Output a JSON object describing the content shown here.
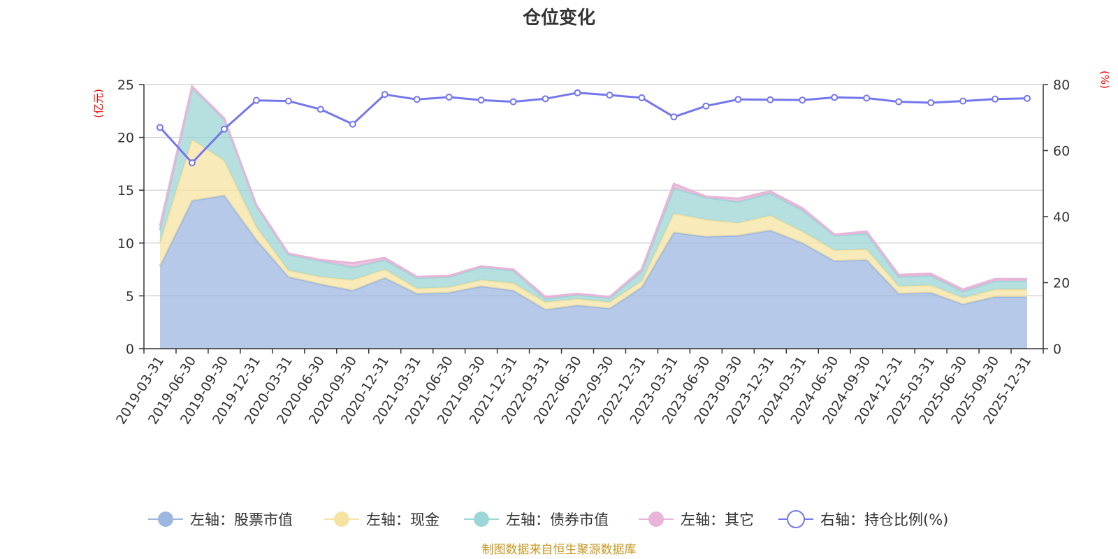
{
  "chart_data": {
    "type": "area",
    "title": "仓位变化",
    "left_unit": "(亿元)",
    "right_unit": "(%)",
    "source": "制图数据来自恒生聚源数据库",
    "categories": [
      "2019-03-31",
      "2019-06-30",
      "2019-09-30",
      "2019-12-31",
      "2020-03-31",
      "2020-06-30",
      "2020-09-30",
      "2020-12-31",
      "2021-03-31",
      "2021-06-30",
      "2021-09-30",
      "2021-12-31",
      "2022-03-31",
      "2022-06-30",
      "2022-09-30",
      "2022-12-31",
      "2023-03-31",
      "2023-06-30",
      "2023-09-30",
      "2023-12-31",
      "2024-03-31",
      "2024-06-30",
      "2024-09-30",
      "2024-12-31",
      "2025-03-31",
      "2025-06-30",
      "2025-09-30",
      "2025-12-31"
    ],
    "left_axis": {
      "min": 0,
      "max": 25,
      "ticks": [
        0,
        5,
        10,
        15,
        20,
        25
      ]
    },
    "right_axis": {
      "min": 0,
      "max": 80,
      "ticks": [
        0,
        20,
        40,
        60,
        80
      ]
    },
    "series": [
      {
        "name": "左轴：股票市值",
        "axis": "left",
        "kind": "stack-area",
        "color": "#9db7e0",
        "values": [
          7.8,
          14.0,
          14.5,
          10.3,
          6.8,
          6.1,
          5.5,
          6.7,
          5.2,
          5.3,
          5.9,
          5.5,
          3.7,
          4.1,
          3.8,
          5.8,
          11.0,
          10.6,
          10.7,
          11.2,
          10.0,
          8.3,
          8.4,
          5.2,
          5.3,
          4.2,
          4.9,
          4.9
        ]
      },
      {
        "name": "左轴：现金",
        "axis": "left",
        "kind": "stack-area",
        "color": "#f5e3a2",
        "values": [
          2.2,
          5.8,
          3.3,
          1.2,
          0.6,
          0.7,
          1.0,
          0.8,
          0.5,
          0.5,
          0.6,
          0.7,
          0.7,
          0.6,
          0.6,
          0.6,
          1.8,
          1.6,
          1.2,
          1.4,
          1.1,
          1.0,
          1.0,
          0.7,
          0.7,
          0.6,
          0.7,
          0.7
        ]
      },
      {
        "name": "左轴：债券市值",
        "axis": "left",
        "kind": "stack-area",
        "color": "#9dd6d6",
        "values": [
          1.2,
          4.9,
          3.9,
          2.0,
          1.5,
          1.5,
          1.2,
          0.9,
          1.0,
          1.0,
          1.2,
          1.2,
          0.3,
          0.4,
          0.4,
          0.9,
          2.4,
          2.1,
          2.0,
          2.1,
          2.0,
          1.4,
          1.5,
          0.9,
          0.9,
          0.6,
          0.8,
          0.8
        ]
      },
      {
        "name": "左轴：其它",
        "axis": "left",
        "kind": "stack-area",
        "color": "#e8b4d8",
        "values": [
          0.4,
          0.1,
          0.1,
          0.1,
          0.1,
          0.1,
          0.4,
          0.2,
          0.1,
          0.1,
          0.1,
          0.1,
          0.2,
          0.1,
          0.1,
          0.2,
          0.4,
          0.1,
          0.3,
          0.2,
          0.2,
          0.1,
          0.2,
          0.2,
          0.2,
          0.2,
          0.2,
          0.2
        ]
      },
      {
        "name": "右轴：持仓比例(%)",
        "axis": "right",
        "kind": "line",
        "color": "#7476ec",
        "values": [
          67,
          56.3,
          66.5,
          75.2,
          75,
          72.5,
          68,
          77,
          75.5,
          76.2,
          75.3,
          74.8,
          75.7,
          77.5,
          76.8,
          76,
          70.2,
          73.5,
          75.5,
          75.4,
          75.3,
          76.1,
          75.9,
          74.8,
          74.5,
          75,
          75.6,
          75.8
        ]
      }
    ]
  }
}
